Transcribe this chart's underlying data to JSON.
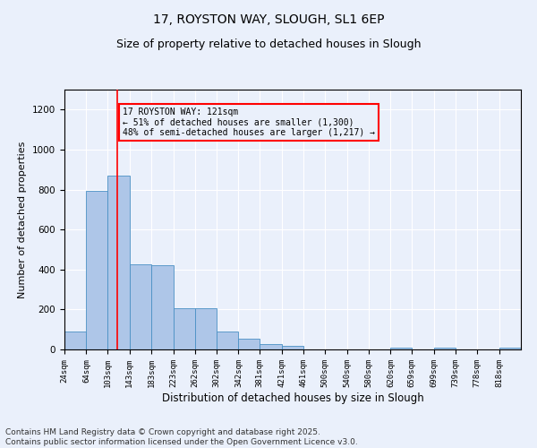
{
  "title": "17, ROYSTON WAY, SLOUGH, SL1 6EP",
  "subtitle": "Size of property relative to detached houses in Slough",
  "xlabel": "Distribution of detached houses by size in Slough",
  "ylabel": "Number of detached properties",
  "bar_color": "#aec6e8",
  "bar_edge_color": "#4a90c4",
  "background_color": "#eaf0fb",
  "grid_color": "#ffffff",
  "vline_x": 121,
  "vline_color": "red",
  "annotation_text": "17 ROYSTON WAY: 121sqm\n← 51% of detached houses are smaller (1,300)\n48% of semi-detached houses are larger (1,217) →",
  "annotation_box_color": "red",
  "annotation_fontsize": 7,
  "categories": [
    "24sqm",
    "64sqm",
    "103sqm",
    "143sqm",
    "183sqm",
    "223sqm",
    "262sqm",
    "302sqm",
    "342sqm",
    "381sqm",
    "421sqm",
    "461sqm",
    "500sqm",
    "540sqm",
    "580sqm",
    "620sqm",
    "659sqm",
    "699sqm",
    "739sqm",
    "778sqm",
    "818sqm"
  ],
  "bin_edges": [
    24,
    64,
    103,
    143,
    183,
    223,
    262,
    302,
    342,
    381,
    421,
    461,
    500,
    540,
    580,
    620,
    659,
    699,
    739,
    778,
    818,
    858
  ],
  "values": [
    90,
    793,
    868,
    425,
    420,
    205,
    205,
    90,
    55,
    25,
    20,
    0,
    0,
    0,
    0,
    10,
    0,
    10,
    0,
    0,
    10
  ],
  "ylim": [
    0,
    1300
  ],
  "yticks": [
    0,
    200,
    400,
    600,
    800,
    1000,
    1200
  ],
  "footnote": "Contains HM Land Registry data © Crown copyright and database right 2025.\nContains public sector information licensed under the Open Government Licence v3.0.",
  "title_fontsize": 10,
  "subtitle_fontsize": 9,
  "ylabel_fontsize": 8,
  "xlabel_fontsize": 8.5,
  "footnote_fontsize": 6.5
}
